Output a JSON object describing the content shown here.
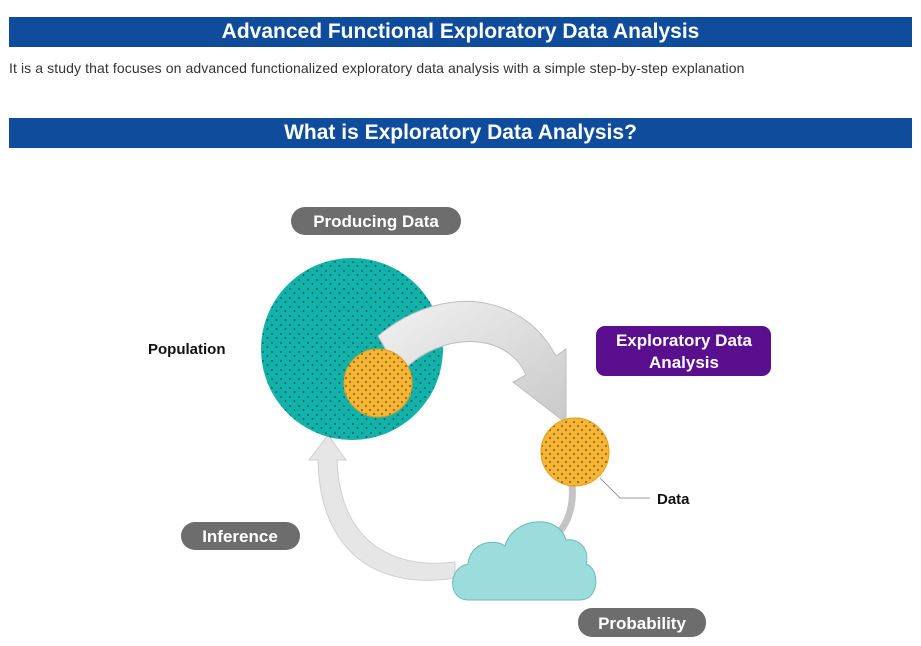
{
  "header": {
    "title": "Advanced Functional Exploratory Data Analysis",
    "description": "It is a study that focuses on advanced functionalized exploratory data analysis with a simple step-by-step explanation"
  },
  "section": {
    "title": "What is Exploratory Data Analysis?"
  },
  "diagram": {
    "labels": {
      "producing_data": "Producing Data",
      "population": "Population",
      "eda_line1": "Exploratory Data",
      "eda_line2": "Analysis",
      "data": "Data",
      "inference": "Inference",
      "probability": "Probability"
    },
    "colors": {
      "banner": "#0f4c9c",
      "population_circle": "#10b2aa",
      "sample_circle": "#f6b634",
      "eda_pill": "#5a0f8f",
      "gray_pill": "#6d6d6d",
      "cloud": "#9bdcdc",
      "arrow": "#dcdcdc"
    },
    "icons": [
      "population-circle",
      "sample-circle",
      "data-circle",
      "cloud-icon",
      "curved-arrow"
    ]
  }
}
